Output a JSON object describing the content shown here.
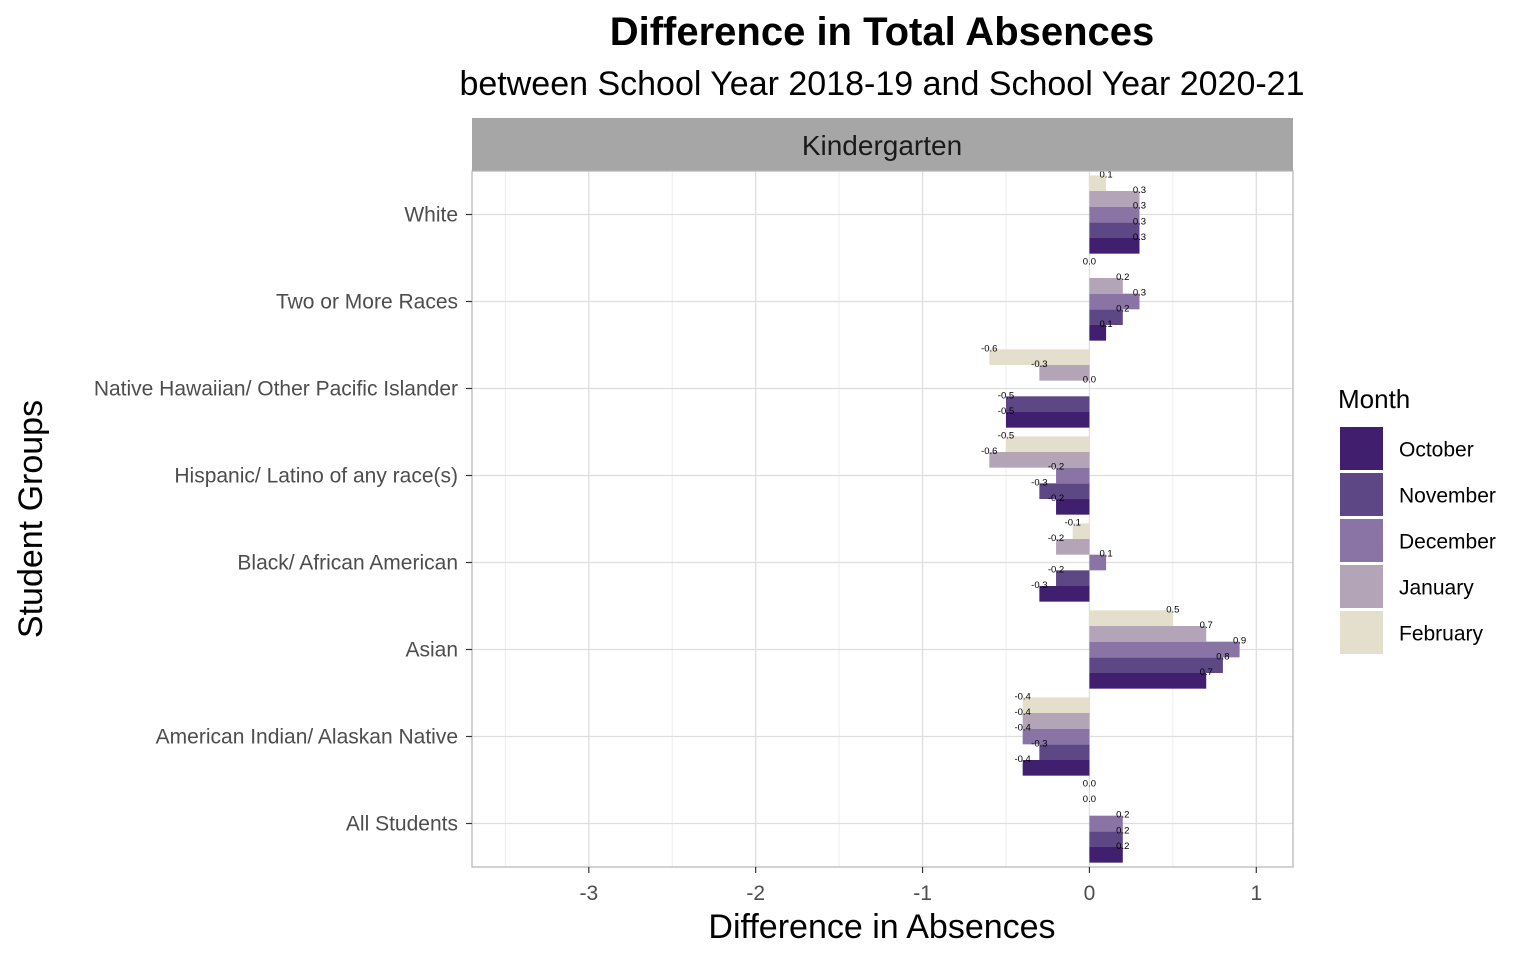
{
  "chart_data": {
    "type": "bar",
    "orientation": "horizontal",
    "title": "Difference in Total Absences",
    "subtitle": "between School Year 2018-19 and School Year 2020-21",
    "facet": "Kindergarten",
    "xlabel": "Difference in Absences",
    "ylabel": "Student Groups",
    "xlim": [
      -3.7,
      1.22
    ],
    "x_ticks": [
      -3,
      -2,
      -1,
      0,
      1
    ],
    "x_tick_labels": [
      "-3",
      "-2",
      "-1",
      "0",
      "1"
    ],
    "grid": true,
    "legend_title": "Month",
    "legend_position": "right",
    "categories": [
      "All Students",
      "American Indian/ Alaskan Native",
      "Asian",
      "Black/ African American",
      "Hispanic/ Latino of any race(s)",
      "Native Hawaiian/ Other Pacific Islander",
      "Two or More Races",
      "White"
    ],
    "series": [
      {
        "name": "October",
        "color": "#3f1f6e",
        "values": [
          0.2,
          -0.4,
          0.7,
          -0.3,
          -0.2,
          -0.5,
          0.1,
          0.3
        ],
        "labels": [
          "0.2",
          "-0.4",
          "0.7",
          "-0.3",
          "-0.2",
          "-0.5",
          "0.1",
          "0.3"
        ]
      },
      {
        "name": "November",
        "color": "#5e4785",
        "values": [
          0.2,
          -0.3,
          0.8,
          -0.2,
          -0.3,
          -0.5,
          0.2,
          0.3
        ],
        "labels": [
          "0.2",
          "-0.3",
          "0.8",
          "-0.2",
          "-0.3",
          "-0.5",
          "0.2",
          "0.3"
        ]
      },
      {
        "name": "December",
        "color": "#8a74a6",
        "values": [
          0.2,
          -0.4,
          0.9,
          0.1,
          -0.2,
          0.0,
          0.3,
          0.3
        ],
        "labels": [
          "0.2",
          "-0.4",
          "0.9",
          "0.1",
          "-0.2",
          "0.0",
          "0.3",
          "0.3"
        ]
      },
      {
        "name": "January",
        "color": "#b4a4b8",
        "values": [
          0.0,
          -0.4,
          0.7,
          -0.2,
          -0.6,
          -0.3,
          0.2,
          0.3
        ],
        "labels": [
          "0.0",
          "-0.4",
          "0.7",
          "-0.2",
          "-0.6",
          "-0.3",
          "0.2",
          "0.3"
        ]
      },
      {
        "name": "February",
        "color": "#e3dfcc",
        "values": [
          0.0,
          -0.4,
          0.5,
          -0.1,
          -0.5,
          -0.6,
          0.0,
          0.1
        ],
        "labels": [
          "0.0",
          "-0.4",
          "0.5",
          "-0.1",
          "-0.5",
          "-0.6",
          "0.0",
          "0.1"
        ]
      }
    ],
    "colors": {
      "strip_background": "#a6a6a6",
      "panel_border": "#b3b3b3",
      "grid_major": "#dedede",
      "grid_minor": "#eeeeee"
    }
  }
}
